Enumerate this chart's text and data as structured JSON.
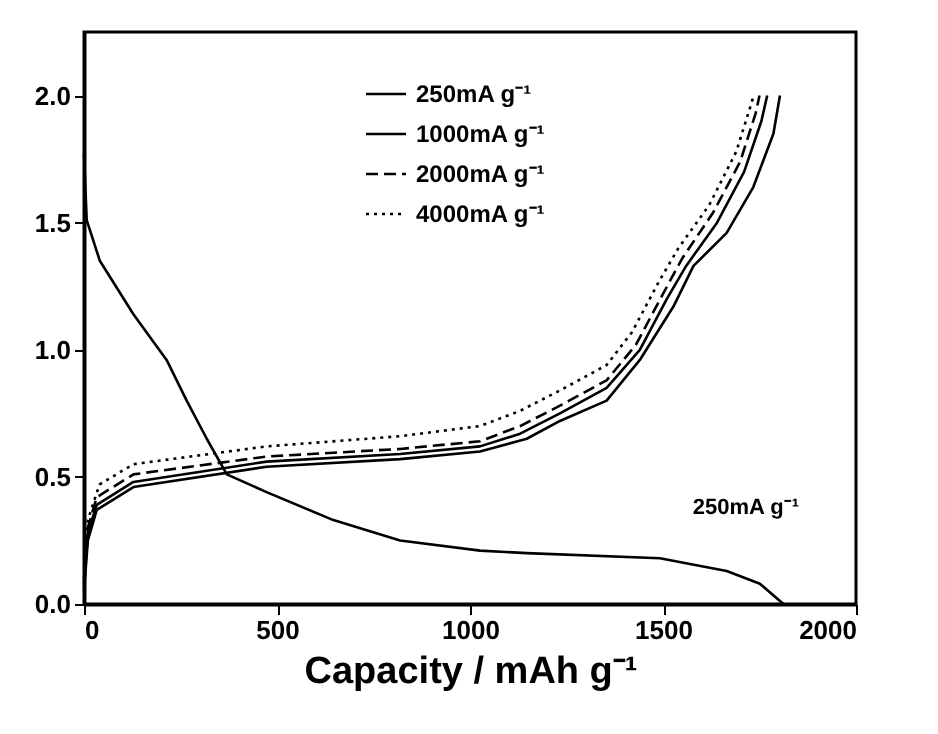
{
  "chart_data": {
    "type": "line",
    "xlabel": "Capacity / mAh g⁻¹",
    "xlim": [
      0,
      2000
    ],
    "xticks": [
      0,
      500,
      1000,
      1500,
      2000
    ],
    "ylim": [
      0,
      2.25
    ],
    "yticks": [
      {
        "value": 0,
        "label": "0.0"
      },
      {
        "value": 0.5,
        "label": "0.5"
      },
      {
        "value": 1,
        "label": "1.0"
      },
      {
        "value": 1.5,
        "label": "1.5"
      },
      {
        "value": 2,
        "label": "2.0"
      }
    ],
    "grid": false,
    "legend": "top",
    "marker": "none",
    "series": [
      {
        "name": "250mA g⁻¹",
        "color": "#000000",
        "line_style": "solid",
        "x": [
          0,
          7,
          41,
          128,
          214,
          266,
          318,
          370,
          473,
          646,
          819,
          1026,
          1147,
          1492,
          1665,
          1751,
          1812,
          null,
          0,
          10,
          33,
          128,
          473,
          819,
          1026,
          1147,
          1233,
          1354,
          1440,
          1527,
          1579,
          1665,
          1734,
          1786,
          1803
        ],
        "values": [
          1.77,
          1.51,
          1.35,
          1.14,
          0.96,
          0.8,
          0.65,
          0.51,
          0.44,
          0.33,
          0.25,
          0.21,
          0.2,
          0.18,
          0.13,
          0.08,
          0,
          null,
          0.05,
          0.25,
          0.37,
          0.46,
          0.54,
          0.57,
          0.6,
          0.65,
          0.72,
          0.8,
          0.96,
          1.17,
          1.33,
          1.46,
          1.64,
          1.85,
          2
        ]
      },
      {
        "name": "1000mA g⁻¹",
        "color": "#000000",
        "line_style": "solid",
        "x": [
          0,
          10,
          33,
          128,
          473,
          819,
          1026,
          1130,
          1233,
          1354,
          1440,
          1510,
          1560,
          1640,
          1710,
          1755,
          1770
        ],
        "values": [
          0.07,
          0.28,
          0.39,
          0.48,
          0.56,
          0.59,
          0.62,
          0.67,
          0.75,
          0.85,
          1,
          1.2,
          1.33,
          1.5,
          1.7,
          1.9,
          2
        ]
      },
      {
        "name": "2000mA g⁻¹",
        "color": "#000000",
        "line_style": "dashed",
        "x": [
          0,
          10,
          33,
          128,
          473,
          819,
          1026,
          1130,
          1233,
          1354,
          1430,
          1500,
          1550,
          1630,
          1700,
          1740,
          1750
        ],
        "values": [
          0.08,
          0.3,
          0.42,
          0.51,
          0.58,
          0.61,
          0.64,
          0.7,
          0.78,
          0.88,
          1.02,
          1.22,
          1.36,
          1.54,
          1.74,
          1.93,
          2
        ]
      },
      {
        "name": "4000mA g⁻¹",
        "color": "#000000",
        "line_style": "dotted",
        "x": [
          0,
          10,
          40,
          128,
          473,
          819,
          1026,
          1130,
          1233,
          1354,
          1420,
          1490,
          1540,
          1620,
          1690,
          1725,
          1735
        ],
        "values": [
          0.1,
          0.33,
          0.47,
          0.55,
          0.62,
          0.66,
          0.7,
          0.76,
          0.84,
          0.94,
          1.07,
          1.27,
          1.4,
          1.57,
          1.78,
          1.95,
          2
        ]
      }
    ],
    "annotations": [
      {
        "text": "250mA g⁻¹",
        "x": 1518,
        "y": 0.19
      }
    ]
  }
}
